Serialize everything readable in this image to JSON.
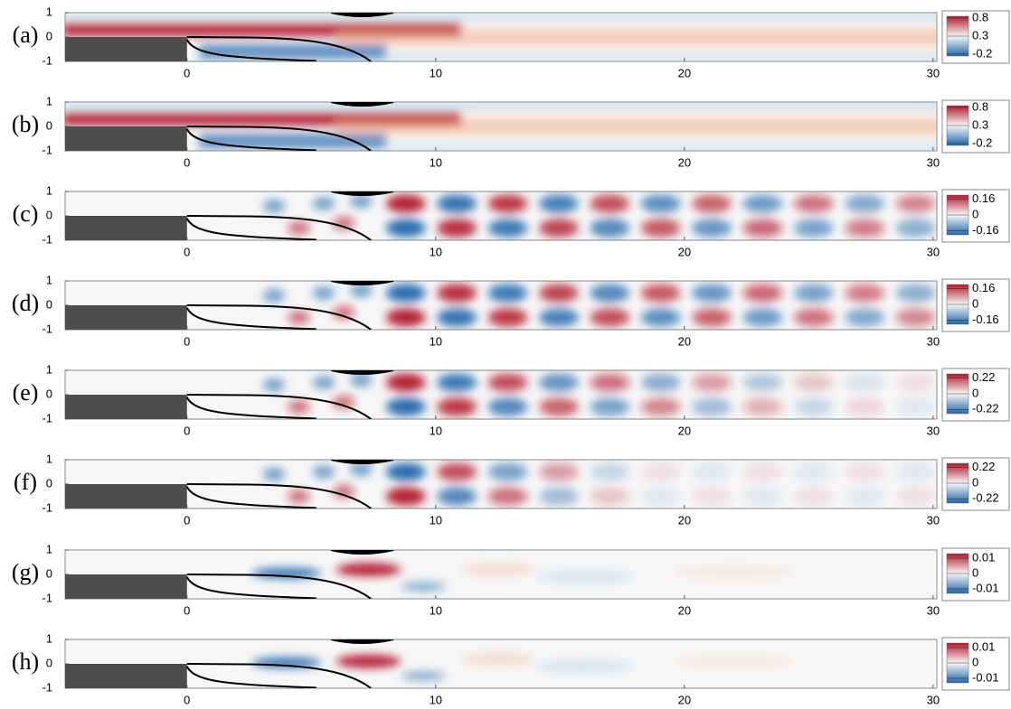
{
  "chart_data": [
    {
      "type": "contour",
      "label": "(a)",
      "xlim": [
        -4.9,
        30.15
      ],
      "xticks": [
        0,
        10,
        20,
        30
      ],
      "ylim": [
        -1,
        1
      ],
      "yticks": [
        -1,
        0,
        1
      ],
      "clim": [
        -0.25,
        0.85
      ],
      "cticks": [
        -0.2,
        0.3,
        0.8
      ],
      "colormap": [
        "#2166ac",
        "#f7f7f7",
        "#b2182b"
      ]
    },
    {
      "type": "contour",
      "label": "(b)",
      "xlim": [
        -4.9,
        30.15
      ],
      "xticks": [
        0,
        10,
        20,
        30
      ],
      "ylim": [
        -1,
        1
      ],
      "yticks": [
        -1,
        0,
        1
      ],
      "clim": [
        -0.25,
        0.85
      ],
      "cticks": [
        -0.2,
        0.3,
        0.8
      ],
      "colormap": [
        "#2166ac",
        "#f7f7f7",
        "#b2182b"
      ]
    },
    {
      "type": "contour",
      "label": "(c)",
      "xlim": [
        -4.9,
        30.15
      ],
      "xticks": [
        0,
        10,
        20,
        30
      ],
      "ylim": [
        -1,
        1
      ],
      "yticks": [
        -1,
        0,
        1
      ],
      "clim": [
        -0.2,
        0.2
      ],
      "cticks": [
        -0.16,
        0,
        0.16
      ],
      "colormap": [
        "#2166ac",
        "#f7f7f7",
        "#b2182b"
      ]
    },
    {
      "type": "contour",
      "label": "(d)",
      "xlim": [
        -4.9,
        30.15
      ],
      "xticks": [
        0,
        10,
        20,
        30
      ],
      "ylim": [
        -1,
        1
      ],
      "yticks": [
        -1,
        0,
        1
      ],
      "clim": [
        -0.2,
        0.2
      ],
      "cticks": [
        -0.16,
        0,
        0.16
      ],
      "colormap": [
        "#2166ac",
        "#f7f7f7",
        "#b2182b"
      ]
    },
    {
      "type": "contour",
      "label": "(e)",
      "xlim": [
        -4.9,
        30.15
      ],
      "xticks": [
        0,
        10,
        20,
        30
      ],
      "ylim": [
        -1,
        1
      ],
      "yticks": [
        -1,
        0,
        1
      ],
      "clim": [
        -0.28,
        0.28
      ],
      "cticks": [
        -0.22,
        0,
        0.22
      ],
      "colormap": [
        "#2166ac",
        "#f7f7f7",
        "#b2182b"
      ]
    },
    {
      "type": "contour",
      "label": "(f)",
      "xlim": [
        -4.9,
        30.15
      ],
      "xticks": [
        0,
        10,
        20,
        30
      ],
      "ylim": [
        -1,
        1
      ],
      "yticks": [
        -1,
        0,
        1
      ],
      "clim": [
        -0.28,
        0.28
      ],
      "cticks": [
        -0.22,
        0,
        0.22
      ],
      "colormap": [
        "#2166ac",
        "#f7f7f7",
        "#b2182b"
      ]
    },
    {
      "type": "contour",
      "label": "(g)",
      "xlim": [
        -4.9,
        30.15
      ],
      "xticks": [
        0,
        10,
        20,
        30
      ],
      "ylim": [
        -1,
        1
      ],
      "yticks": [
        -1,
        0,
        1
      ],
      "clim": [
        -0.013,
        0.013
      ],
      "cticks": [
        -0.01,
        0,
        0.01
      ],
      "colormap": [
        "#2166ac",
        "#f7f7f7",
        "#b2182b"
      ]
    },
    {
      "type": "contour",
      "label": "(h)",
      "xlim": [
        -4.9,
        30.15
      ],
      "xticks": [
        0,
        10,
        20,
        30
      ],
      "ylim": [
        -1,
        1
      ],
      "yticks": [
        -1,
        0,
        1
      ],
      "clim": [
        -0.013,
        0.013
      ],
      "cticks": [
        -0.01,
        0,
        0.01
      ],
      "colormap": [
        "#2166ac",
        "#f7f7f7",
        "#b2182b"
      ]
    }
  ]
}
